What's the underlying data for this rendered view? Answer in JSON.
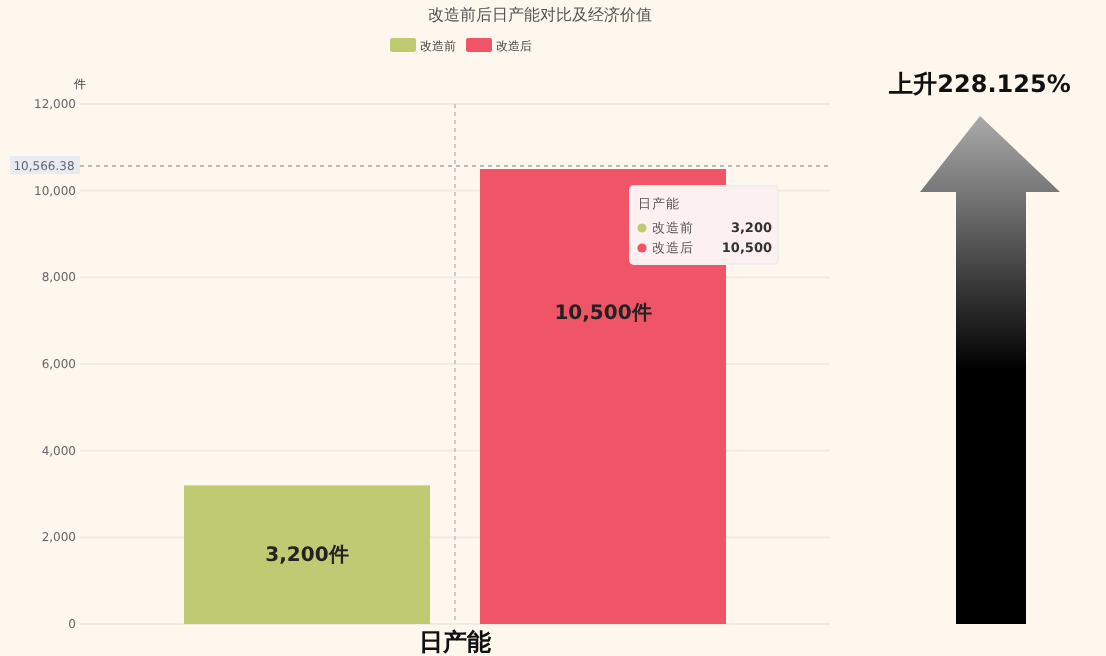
{
  "chart_data": {
    "type": "bar",
    "title": "改造前后日产能对比及经济价值",
    "ylabel": "件",
    "categories": [
      "日产能"
    ],
    "series": [
      {
        "name": "改造前",
        "color": "#c0ca72",
        "values": [
          3200
        ],
        "value_labels": [
          "3,200件"
        ]
      },
      {
        "name": "改造后",
        "color": "#ef5566",
        "values": [
          10500
        ],
        "value_labels": [
          "10,500件"
        ]
      }
    ],
    "ylim": [
      0,
      12000
    ],
    "yticks": [
      {
        "value": 0,
        "label": "0"
      },
      {
        "value": 2000,
        "label": "2,000"
      },
      {
        "value": 4000,
        "label": "4,000"
      },
      {
        "value": 6000,
        "label": "6,000"
      },
      {
        "value": 8000,
        "label": "8,000"
      },
      {
        "value": 10000,
        "label": "10,000"
      },
      {
        "value": 12000,
        "label": "12,000"
      }
    ],
    "grid": "y",
    "legend": "top",
    "ref_lines": [
      {
        "axis": "y",
        "value": 10566.38,
        "label": "10,566.38",
        "color": "#bbbbbb",
        "line_style": "dashed"
      },
      {
        "axis": "x",
        "value": "日产能",
        "color": "#cccccc",
        "line_style": "dashed"
      }
    ],
    "annotations": [
      "上升228.125%",
      "日产能",
      "改造前",
      "3,200",
      "改造后",
      "10,500"
    ]
  }
}
